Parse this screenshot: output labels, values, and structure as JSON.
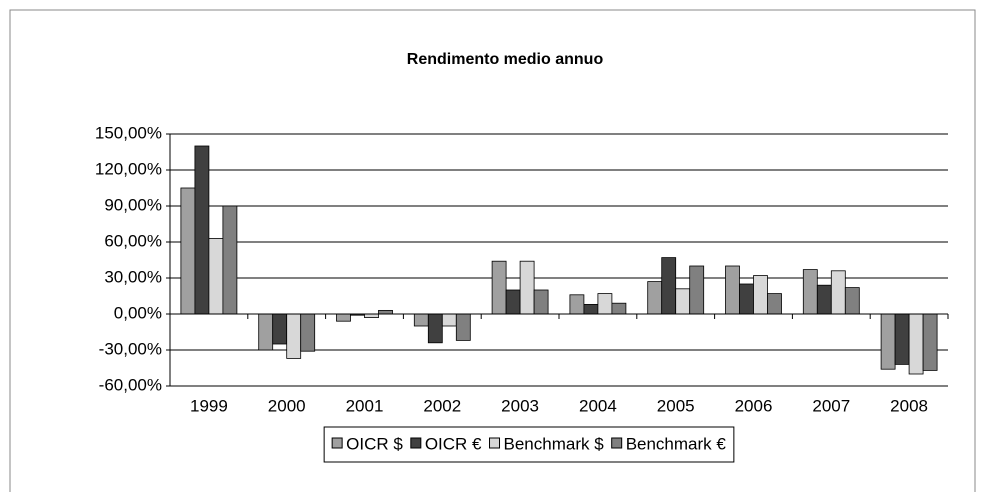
{
  "chart_data": {
    "type": "bar",
    "title": "Rendimento medio annuo",
    "categories": [
      "1999",
      "2000",
      "2001",
      "2002",
      "2003",
      "2004",
      "2005",
      "2006",
      "2007",
      "2008"
    ],
    "series": [
      {
        "name": "OICR $",
        "color": "#a0a0a0",
        "values": [
          105,
          -30,
          -6,
          -10,
          44,
          16,
          27,
          40,
          37,
          -46
        ]
      },
      {
        "name": "OICR €",
        "color": "#404040",
        "values": [
          140,
          -25,
          -1,
          -24,
          20,
          8,
          47,
          25,
          24,
          -42
        ]
      },
      {
        "name": "Benchmark $",
        "color": "#d8d8d8",
        "values": [
          63,
          -37,
          -3,
          -10,
          44,
          17,
          21,
          32,
          36,
          -50
        ]
      },
      {
        "name": "Benchmark €",
        "color": "#808080",
        "values": [
          90,
          -31,
          3,
          -22,
          20,
          9,
          40,
          17,
          22,
          -47
        ]
      }
    ],
    "ylim": [
      -60,
      150
    ],
    "yticks": [
      {
        "value": -60,
        "label": "-60,00%"
      },
      {
        "value": -30,
        "label": "-30,00%"
      },
      {
        "value": 0,
        "label": "0,00%"
      },
      {
        "value": 30,
        "label": "30,00%"
      },
      {
        "value": 60,
        "label": "60,00%"
      },
      {
        "value": 90,
        "label": "90,00%"
      },
      {
        "value": 120,
        "label": "120,00%"
      },
      {
        "value": 150,
        "label": "150,00%"
      }
    ],
    "grid": true,
    "legend": "bottom"
  }
}
